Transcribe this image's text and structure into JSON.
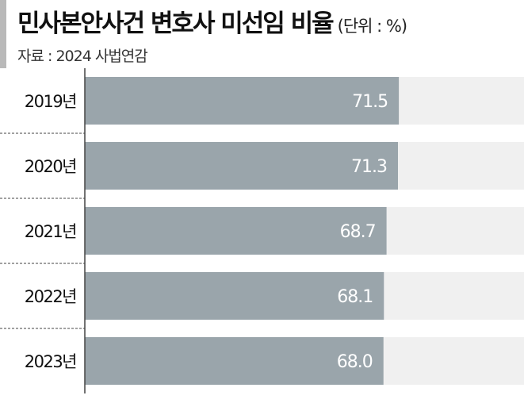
{
  "header": {
    "title": "민사본안사건 변호사 미선임 비율",
    "unit": "(단위 : %)",
    "source": "자료 : 2024 사법연감"
  },
  "colors": {
    "bar": "#9aa5ab",
    "track": "#f0f0f0",
    "divider": "#444444",
    "accent_bar": "#b9b9b9"
  },
  "chart_data": {
    "type": "bar",
    "orientation": "horizontal",
    "categories": [
      "2019년",
      "2020년",
      "2021년",
      "2022년",
      "2023년"
    ],
    "values": [
      71.5,
      71.3,
      68.7,
      68.1,
      68.0
    ],
    "data_labels": [
      "71.5",
      "71.3",
      "68.7",
      "68.1",
      "68.0"
    ],
    "xlim": [
      0,
      100
    ],
    "grid": false,
    "legend": "none"
  }
}
